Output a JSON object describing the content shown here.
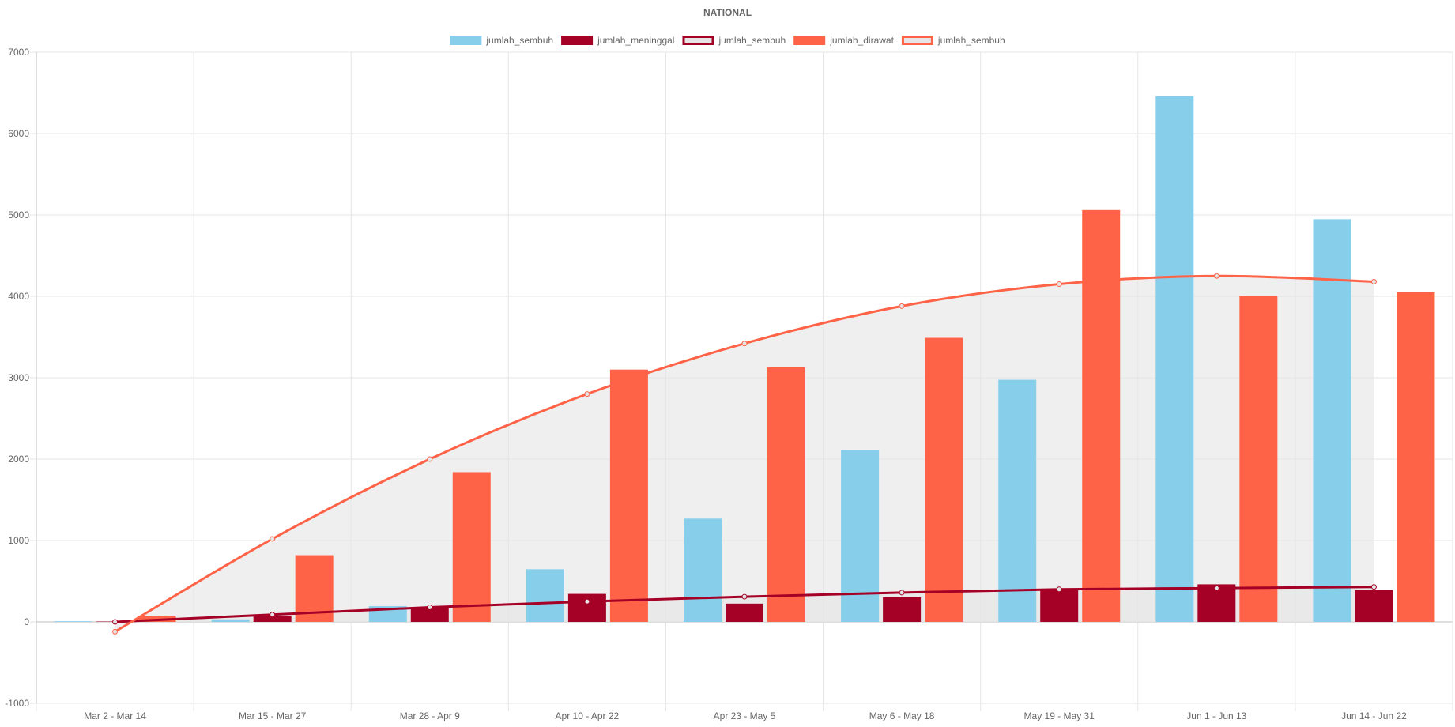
{
  "chart_data": {
    "type": "bar",
    "title": "NATIONAL",
    "legend_position": "top",
    "grid": true,
    "ylim": [
      -1000,
      7000
    ],
    "y_ticks": [
      -1000,
      0,
      1000,
      2000,
      3000,
      4000,
      5000,
      6000,
      7000
    ],
    "categories": [
      "Mar 2 - Mar 14",
      "Mar 15 - Mar 27",
      "Mar 28 - Apr 9",
      "Apr 10 - Apr 22",
      "Apr 23 - May 5",
      "May 6 - May 18",
      "May 19 - May 31",
      "Jun 1 - Jun 13",
      "Jun 14 - Jun 22"
    ],
    "series": [
      {
        "name": "jumlah_sembuh",
        "kind": "bar",
        "color": "#87CEEB",
        "values": [
          8,
          31,
          193,
          647,
          1269,
          2112,
          2975,
          6460,
          4948
        ]
      },
      {
        "name": "jumlah_meninggal",
        "kind": "bar",
        "color": "#A50026",
        "values": [
          5,
          73,
          176,
          344,
          225,
          305,
          406,
          462,
          393
        ]
      },
      {
        "name": "jumlah_sembuh",
        "kind": "line",
        "color": "#A50026",
        "fill": "#E5E5E5",
        "values": [
          0,
          90,
          180,
          250,
          310,
          360,
          400,
          415,
          430
        ]
      },
      {
        "name": "jumlah_dirawat",
        "kind": "bar",
        "color": "#FF6347",
        "values": [
          75,
          820,
          1840,
          3100,
          3130,
          3490,
          5060,
          4000,
          4050
        ]
      },
      {
        "name": "jumlah_sembuh",
        "kind": "line",
        "color": "#FF6347",
        "fill": "#E5E5E5",
        "values": [
          -120,
          1020,
          2000,
          2800,
          3420,
          3880,
          4150,
          4250,
          4180
        ]
      }
    ]
  }
}
